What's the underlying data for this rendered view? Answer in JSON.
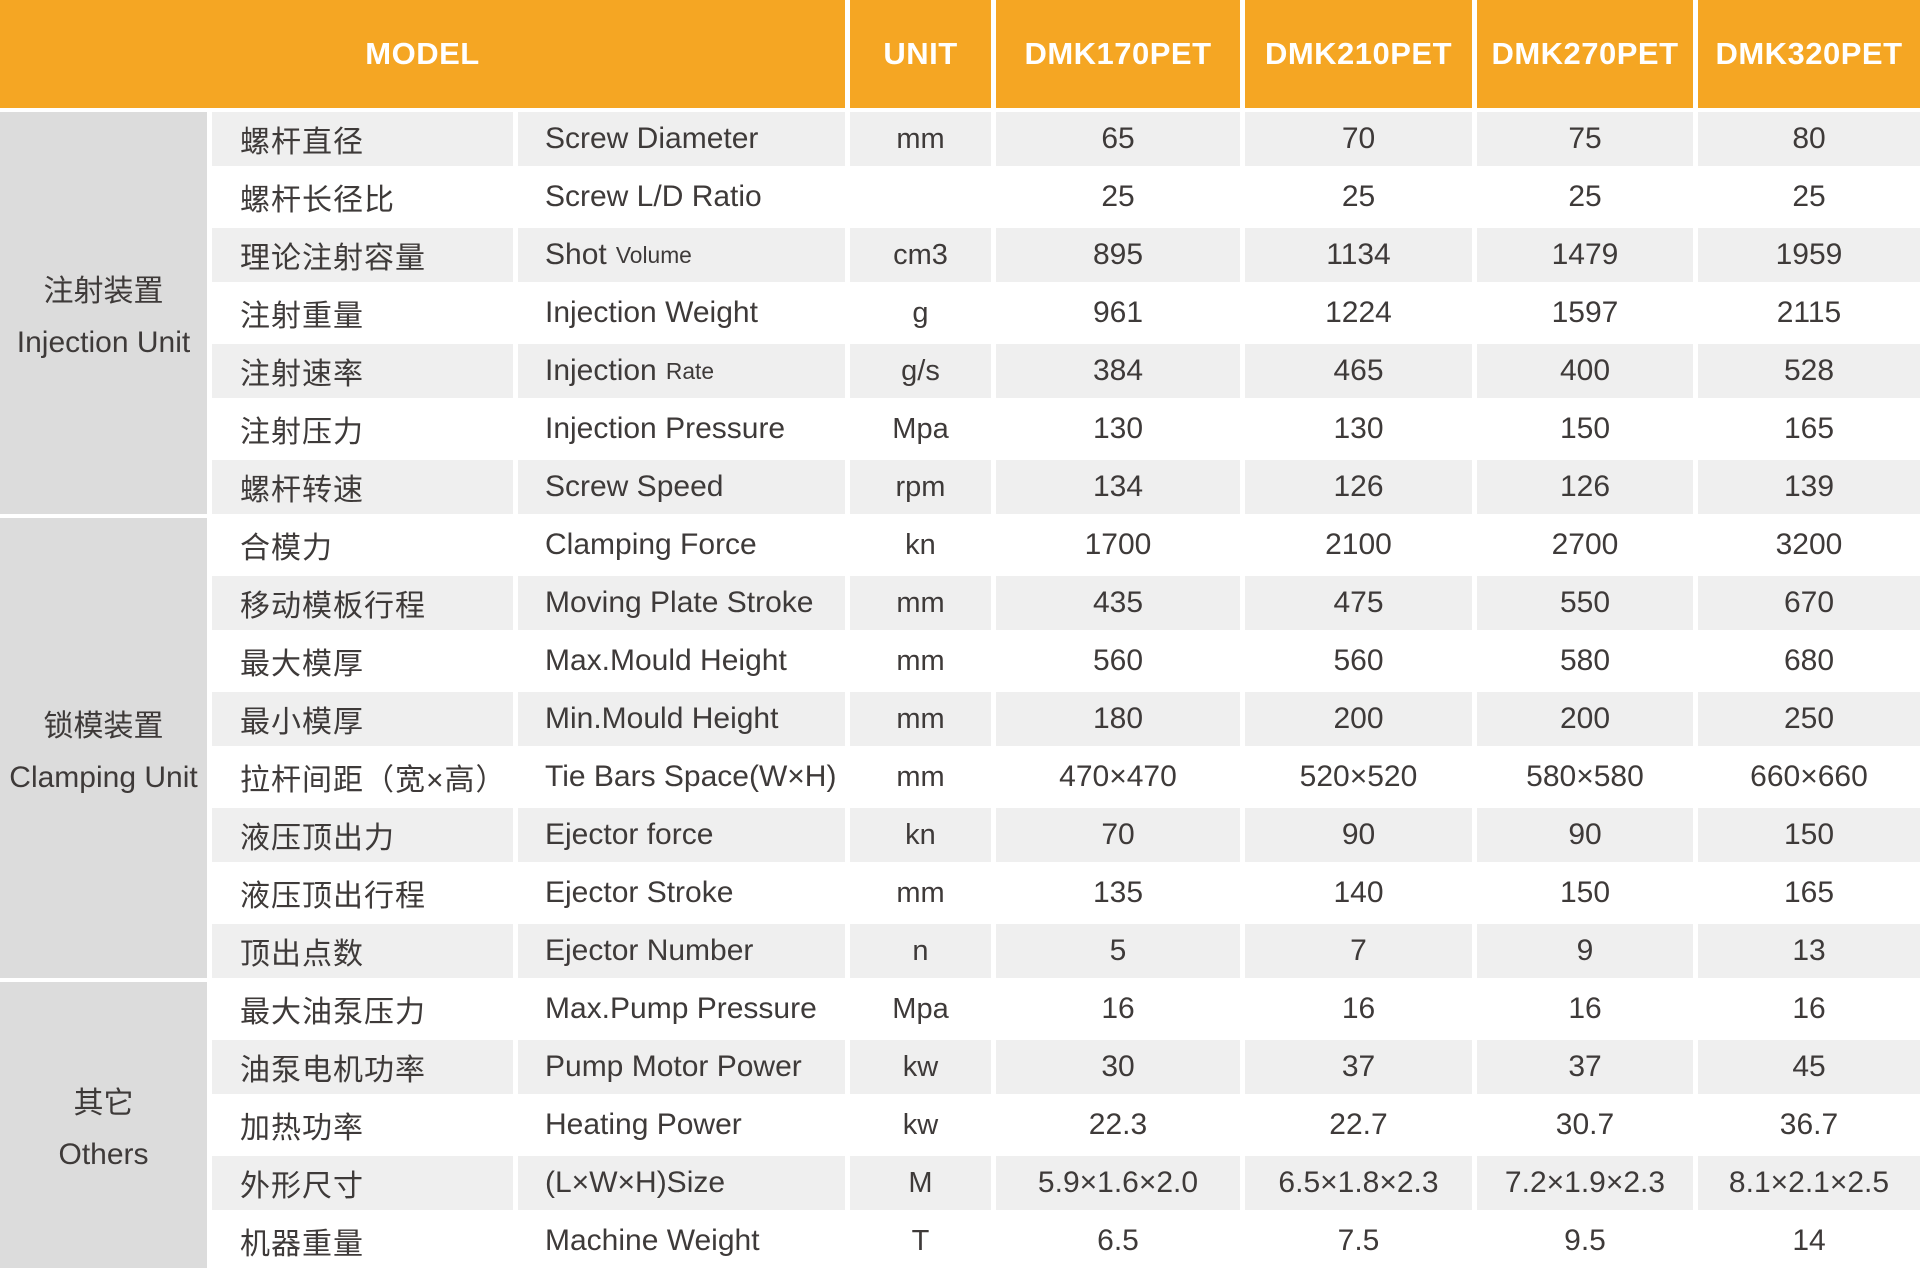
{
  "header": {
    "model_label": "MODEL",
    "unit_label": "UNIT",
    "models": [
      "DMK170PET",
      "DMK210PET",
      "DMK270PET",
      "DMK320PET"
    ]
  },
  "colors": {
    "header_bg": "#F5A623",
    "header_text": "#FFFFFF",
    "group_bg": "#DCDCDC",
    "row_odd_bg": "#EFEFEF",
    "row_even_bg": "#FFFFFF",
    "body_text": "#3E3A39"
  },
  "groups": [
    {
      "zh": "注射装置",
      "en": "Injection Unit",
      "rows": [
        {
          "zh": "螺杆直径",
          "en": "Screw Diameter",
          "en_small": "",
          "unit": "mm",
          "values": [
            "65",
            "70",
            "75",
            "80"
          ]
        },
        {
          "zh": "螺杆长径比",
          "en": "Screw L/D Ratio",
          "en_small": "",
          "unit": "",
          "values": [
            "25",
            "25",
            "25",
            "25"
          ]
        },
        {
          "zh": "理论注射容量",
          "en": "Shot",
          "en_small": "Volume",
          "unit": "cm3",
          "values": [
            "895",
            "1134",
            "1479",
            "1959"
          ]
        },
        {
          "zh": "注射重量",
          "en": "Injection Weight",
          "en_small": "",
          "unit": "g",
          "values": [
            "961",
            "1224",
            "1597",
            "2115"
          ]
        },
        {
          "zh": "注射速率",
          "en": "Injection",
          "en_small": "Rate",
          "unit": "g/s",
          "values": [
            "384",
            "465",
            "400",
            "528"
          ]
        },
        {
          "zh": "注射压力",
          "en": "Injection Pressure",
          "en_small": "",
          "unit": "Mpa",
          "values": [
            "130",
            "130",
            "150",
            "165"
          ]
        },
        {
          "zh": "螺杆转速",
          "en": "Screw Speed",
          "en_small": "",
          "unit": "rpm",
          "values": [
            "134",
            "126",
            "126",
            "139"
          ]
        }
      ]
    },
    {
      "zh": "锁模装置",
      "en": "Clamping Unit",
      "rows": [
        {
          "zh": "合模力",
          "en": "Clamping Force",
          "en_small": "",
          "unit": "kn",
          "values": [
            "1700",
            "2100",
            "2700",
            "3200"
          ]
        },
        {
          "zh": "移动模板行程",
          "en": "Moving Plate Stroke",
          "en_small": "",
          "unit": "mm",
          "values": [
            "435",
            "475",
            "550",
            "670"
          ]
        },
        {
          "zh": "最大模厚",
          "en": "Max.Mould Height",
          "en_small": "",
          "unit": "mm",
          "values": [
            "560",
            "560",
            "580",
            "680"
          ]
        },
        {
          "zh": "最小模厚",
          "en": "Min.Mould Height",
          "en_small": "",
          "unit": "mm",
          "values": [
            "180",
            "200",
            "200",
            "250"
          ]
        },
        {
          "zh": "拉杆间距（宽×高）",
          "en": "Tie Bars Space(W×H)",
          "en_small": "",
          "unit": "mm",
          "values": [
            "470×470",
            "520×520",
            "580×580",
            "660×660"
          ]
        },
        {
          "zh": "液压顶出力",
          "en": "Ejector force",
          "en_small": "",
          "unit": "kn",
          "values": [
            "70",
            "90",
            "90",
            "150"
          ]
        },
        {
          "zh": "液压顶出行程",
          "en": "Ejector Stroke",
          "en_small": "",
          "unit": "mm",
          "values": [
            "135",
            "140",
            "150",
            "165"
          ]
        },
        {
          "zh": "顶出点数",
          "en": "Ejector Number",
          "en_small": "",
          "unit": "n",
          "values": [
            "5",
            "7",
            "9",
            "13"
          ]
        }
      ]
    },
    {
      "zh": "其它",
      "en": "Others",
      "rows": [
        {
          "zh": "最大油泵压力",
          "en": "Max.Pump Pressure",
          "en_small": "",
          "unit": "Mpa",
          "values": [
            "16",
            "16",
            "16",
            "16"
          ]
        },
        {
          "zh": "油泵电机功率",
          "en": "Pump Motor Power",
          "en_small": "",
          "unit": "kw",
          "values": [
            "30",
            "37",
            "37",
            "45"
          ]
        },
        {
          "zh": "加热功率",
          "en": "Heating Power",
          "en_small": "",
          "unit": "kw",
          "values": [
            "22.3",
            "22.7",
            "30.7",
            "36.7"
          ]
        },
        {
          "zh": "外形尺寸",
          "en": "(L×W×H)Size",
          "en_small": "",
          "unit": "M",
          "values": [
            "5.9×1.6×2.0",
            "6.5×1.8×2.3",
            "7.2×1.9×2.3",
            "8.1×2.1×2.5"
          ]
        },
        {
          "zh": "机器重量",
          "en": "Machine Weight",
          "en_small": "",
          "unit": "T",
          "values": [
            "6.5",
            "7.5",
            "9.5",
            "14"
          ]
        }
      ]
    }
  ]
}
